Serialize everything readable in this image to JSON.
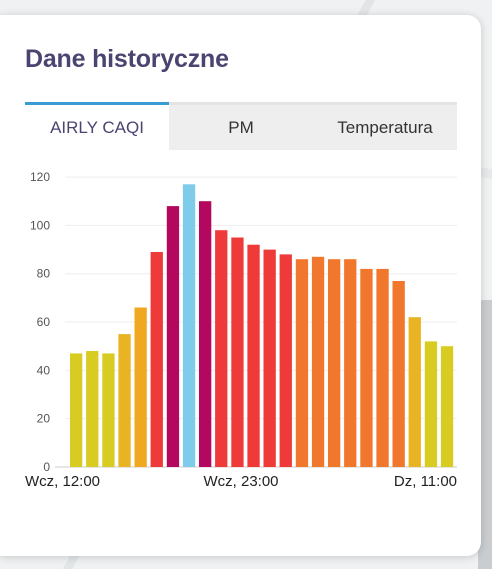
{
  "panel": {
    "title": "Dane historyczne",
    "tabs": [
      {
        "label": "AIRLY CAQI",
        "active": true
      },
      {
        "label": "PM",
        "active": false
      },
      {
        "label": "Temperatura",
        "active": false
      }
    ]
  },
  "chart_data": {
    "type": "bar",
    "title": "",
    "xlabel": "",
    "ylabel": "",
    "ylim": [
      0,
      125
    ],
    "yticks": [
      0,
      20,
      40,
      60,
      80,
      100,
      120
    ],
    "grid": true,
    "x_tick_labels": [
      "Wcz, 12:00",
      "Wcz, 23:00",
      "Dz, 11:00"
    ],
    "values": [
      47,
      48,
      47,
      55,
      66,
      89,
      108,
      117,
      110,
      98,
      95,
      92,
      90,
      88,
      86,
      87,
      86,
      86,
      82,
      82,
      77,
      62,
      52,
      50
    ],
    "colors": [
      "#d8cc22",
      "#d8cc22",
      "#d8cc22",
      "#e8b424",
      "#f0a820",
      "#ee3a38",
      "#b3085e",
      "#7ecbea",
      "#b3085e",
      "#ee3a38",
      "#ee3a38",
      "#ee3a38",
      "#ee3a38",
      "#ee3a38",
      "#f0772c",
      "#f0772c",
      "#f0772c",
      "#f0772c",
      "#f0772c",
      "#f0772c",
      "#f0772c",
      "#e8b424",
      "#d8cc22",
      "#d8cc22"
    ]
  }
}
